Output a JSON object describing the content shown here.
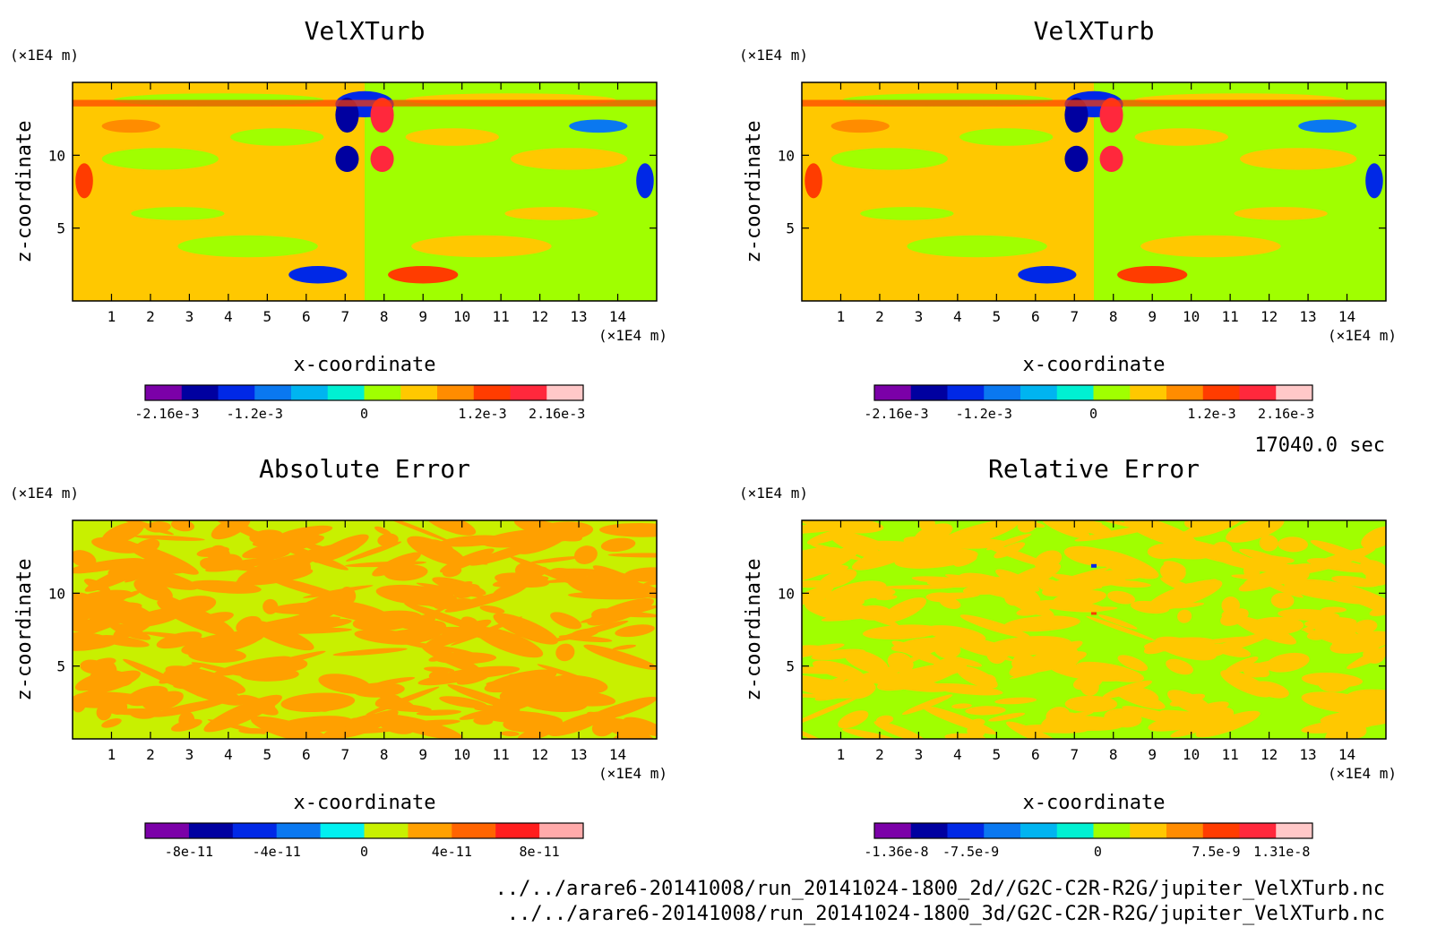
{
  "figure": {
    "time_label": "17040.0 sec",
    "files": [
      "../../arare6-20141008/run_20141024-1800_2d//G2C-C2R-R2G/jupiter_VelXTurb.nc",
      "../../arare6-20141008/run_20141024-1800_3d/G2C-C2R-R2G/jupiter_VelXTurb.nc"
    ]
  },
  "chart_data": [
    {
      "type": "heatmap",
      "title": "VelXTurb",
      "xlabel": "x-coordinate",
      "ylabel": "z-coordinate",
      "x_unit": "(×1E4 m)",
      "y_unit": "(×1E4 m)",
      "xlim": [
        0,
        15
      ],
      "ylim": [
        0,
        15
      ],
      "xticks": [
        "1",
        "2",
        "3",
        "4",
        "5",
        "6",
        "7",
        "8",
        "9",
        "10",
        "11",
        "12",
        "13",
        "14"
      ],
      "yticks": [
        "5",
        "10"
      ],
      "colorbar": {
        "colors": [
          "#7b00a8",
          "#0000a0",
          "#0028e6",
          "#0a78f0",
          "#00b4f0",
          "#00f0d2",
          "#a0ff00",
          "#ffc800",
          "#ff8c00",
          "#ff3c00",
          "#ff283c",
          "#ffc8c8"
        ],
        "labels": [
          "-2.16e-3",
          "-1.2e-3",
          "0",
          "1.2e-3",
          "2.16e-3"
        ]
      }
    },
    {
      "type": "heatmap",
      "title": "VelXTurb",
      "xlabel": "x-coordinate",
      "ylabel": "z-coordinate",
      "x_unit": "(×1E4 m)",
      "y_unit": "(×1E4 m)",
      "xlim": [
        0,
        15
      ],
      "ylim": [
        0,
        15
      ],
      "xticks": [
        "1",
        "2",
        "3",
        "4",
        "5",
        "6",
        "7",
        "8",
        "9",
        "10",
        "11",
        "12",
        "13",
        "14"
      ],
      "yticks": [
        "5",
        "10"
      ],
      "colorbar": {
        "colors": [
          "#7b00a8",
          "#0000a0",
          "#0028e6",
          "#0a78f0",
          "#00b4f0",
          "#00f0d2",
          "#a0ff00",
          "#ffc800",
          "#ff8c00",
          "#ff3c00",
          "#ff283c",
          "#ffc8c8"
        ],
        "labels": [
          "-2.16e-3",
          "-1.2e-3",
          "0",
          "1.2e-3",
          "2.16e-3"
        ]
      }
    },
    {
      "type": "heatmap",
      "title": "Absolute Error",
      "xlabel": "x-coordinate",
      "ylabel": "z-coordinate",
      "x_unit": "(×1E4 m)",
      "y_unit": "(×1E4 m)",
      "xlim": [
        0,
        15
      ],
      "ylim": [
        0,
        15
      ],
      "xticks": [
        "1",
        "2",
        "3",
        "4",
        "5",
        "6",
        "7",
        "8",
        "9",
        "10",
        "11",
        "12",
        "13",
        "14"
      ],
      "yticks": [
        "5",
        "10"
      ],
      "colorbar": {
        "colors": [
          "#7b00a8",
          "#0000a0",
          "#0028e6",
          "#0a78f0",
          "#00f0f0",
          "#c8f000",
          "#ffa000",
          "#ff6400",
          "#ff1e1e",
          "#ffaaaa"
        ],
        "labels": [
          "-8e-11",
          "-4e-11",
          "0",
          "4e-11",
          "8e-11"
        ]
      }
    },
    {
      "type": "heatmap",
      "title": "Relative Error",
      "xlabel": "x-coordinate",
      "ylabel": "z-coordinate",
      "x_unit": "(×1E4 m)",
      "y_unit": "(×1E4 m)",
      "xlim": [
        0,
        15
      ],
      "ylim": [
        0,
        15
      ],
      "xticks": [
        "1",
        "2",
        "3",
        "4",
        "5",
        "6",
        "7",
        "8",
        "9",
        "10",
        "11",
        "12",
        "13",
        "14"
      ],
      "yticks": [
        "5",
        "10"
      ],
      "colorbar": {
        "colors": [
          "#7b00a8",
          "#0000a0",
          "#0028e6",
          "#0a78f0",
          "#00b4f0",
          "#00f0d2",
          "#a0ff00",
          "#ffc800",
          "#ff8c00",
          "#ff3c00",
          "#ff283c",
          "#ffc8c8"
        ],
        "labels": [
          "-1.36e-8",
          "-7.5e-9",
          "0",
          "7.5e-9",
          "1.31e-8"
        ]
      }
    }
  ]
}
